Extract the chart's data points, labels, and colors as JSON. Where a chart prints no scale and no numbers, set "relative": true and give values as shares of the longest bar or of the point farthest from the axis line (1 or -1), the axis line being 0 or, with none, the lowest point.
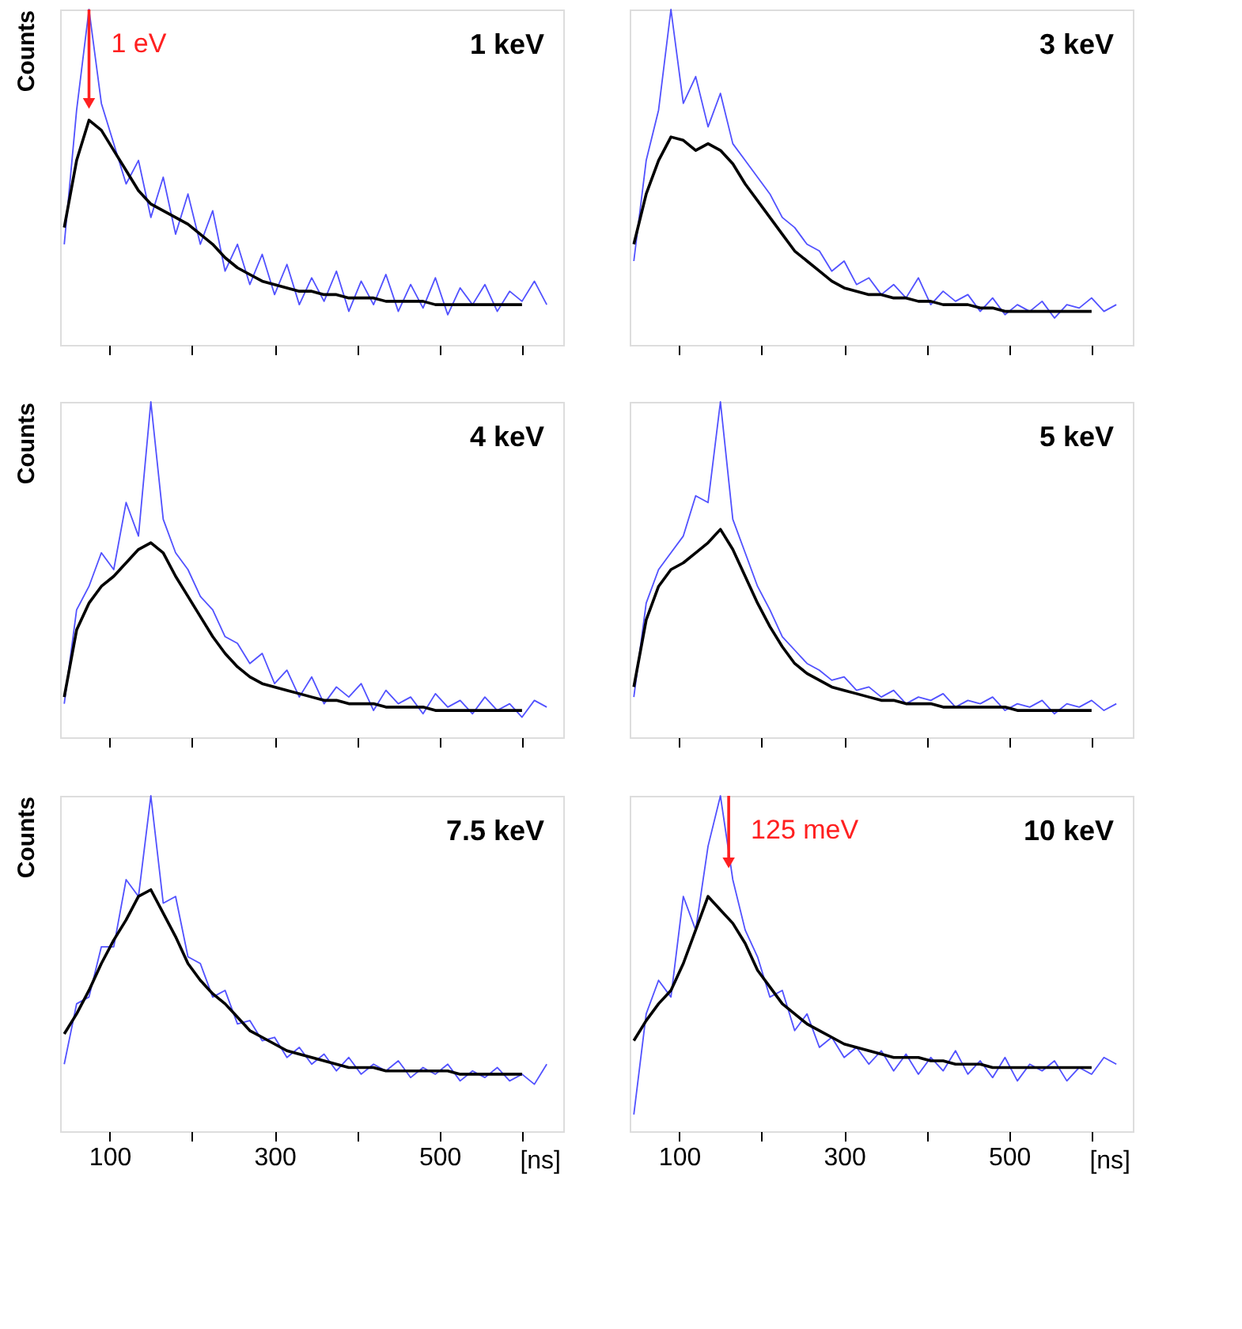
{
  "chart_data": [
    {
      "type": "line",
      "title": "1 keV",
      "ylabel": "Counts",
      "relative": true,
      "grid": false,
      "tick_labels": false,
      "xlim": [
        40,
        650
      ],
      "xticks": [
        100,
        {
          "value": 200,
          "label": null
        },
        300,
        {
          "value": 400,
          "label": null
        },
        500,
        {
          "value": 600,
          "label": null
        }
      ],
      "x": [
        45,
        60,
        75,
        90,
        105,
        120,
        135,
        150,
        165,
        180,
        195,
        210,
        225,
        240,
        255,
        270,
        285,
        300,
        315,
        330,
        345,
        360,
        375,
        390,
        405,
        420,
        435,
        450,
        465,
        480,
        495,
        510,
        525,
        540,
        555,
        570,
        585,
        600,
        615,
        630
      ],
      "annotations": [
        {
          "text": "1 eV",
          "x": 75,
          "y": 0.72
        }
      ],
      "series": [
        {
          "color": "#3333ff",
          "values": [
            0.3,
            0.7,
            1.0,
            0.72,
            0.6,
            0.48,
            0.55,
            0.38,
            0.5,
            0.33,
            0.45,
            0.3,
            0.4,
            0.22,
            0.3,
            0.18,
            0.27,
            0.15,
            0.24,
            0.12,
            0.2,
            0.13,
            0.22,
            0.1,
            0.19,
            0.12,
            0.21,
            0.1,
            0.18,
            0.11,
            0.2,
            0.09,
            0.17,
            0.12,
            0.18,
            0.1,
            0.16,
            0.13,
            0.19,
            0.12
          ]
        },
        {
          "color": "#000000",
          "values": [
            0.35,
            0.55,
            0.67,
            0.64,
            0.58,
            0.52,
            0.46,
            0.42,
            0.4,
            0.38,
            0.36,
            0.33,
            0.3,
            0.26,
            0.23,
            0.21,
            0.19,
            0.18,
            0.17,
            0.16,
            0.16,
            0.15,
            0.15,
            0.14,
            0.14,
            0.14,
            0.13,
            0.13,
            0.13,
            0.13,
            0.12,
            0.12,
            0.12,
            0.12,
            0.12,
            0.12,
            0.12,
            0.12,
            null,
            null
          ]
        }
      ]
    },
    {
      "type": "line",
      "title": "3 keV",
      "relative": true,
      "grid": false,
      "tick_labels": false,
      "xlim": [
        40,
        650
      ],
      "xticks": [
        100,
        {
          "value": 200,
          "label": null
        },
        300,
        {
          "value": 400,
          "label": null
        },
        500,
        {
          "value": 600,
          "label": null
        }
      ],
      "x": [
        45,
        60,
        75,
        90,
        105,
        120,
        135,
        150,
        165,
        180,
        195,
        210,
        225,
        240,
        255,
        270,
        285,
        300,
        315,
        330,
        345,
        360,
        375,
        390,
        405,
        420,
        435,
        450,
        465,
        480,
        495,
        510,
        525,
        540,
        555,
        570,
        585,
        600,
        615,
        630
      ],
      "series": [
        {
          "color": "#3333ff",
          "values": [
            0.25,
            0.55,
            0.7,
            1.0,
            0.72,
            0.8,
            0.65,
            0.75,
            0.6,
            0.55,
            0.5,
            0.45,
            0.38,
            0.35,
            0.3,
            0.28,
            0.22,
            0.25,
            0.18,
            0.2,
            0.15,
            0.18,
            0.14,
            0.2,
            0.12,
            0.16,
            0.13,
            0.15,
            0.1,
            0.14,
            0.09,
            0.12,
            0.1,
            0.13,
            0.08,
            0.12,
            0.11,
            0.14,
            0.1,
            0.12
          ]
        },
        {
          "color": "#000000",
          "values": [
            0.3,
            0.45,
            0.55,
            0.62,
            0.61,
            0.58,
            0.6,
            0.58,
            0.54,
            0.48,
            0.43,
            0.38,
            0.33,
            0.28,
            0.25,
            0.22,
            0.19,
            0.17,
            0.16,
            0.15,
            0.15,
            0.14,
            0.14,
            0.13,
            0.13,
            0.12,
            0.12,
            0.12,
            0.11,
            0.11,
            0.1,
            0.1,
            0.1,
            0.1,
            0.1,
            0.1,
            0.1,
            0.1,
            null,
            null
          ]
        }
      ]
    },
    {
      "type": "line",
      "title": "4 keV",
      "ylabel": "Counts",
      "relative": true,
      "grid": false,
      "tick_labels": false,
      "xlim": [
        40,
        650
      ],
      "xticks": [
        100,
        {
          "value": 200,
          "label": null
        },
        300,
        {
          "value": 400,
          "label": null
        },
        500,
        {
          "value": 600,
          "label": null
        }
      ],
      "x": [
        45,
        60,
        75,
        90,
        105,
        120,
        135,
        150,
        165,
        180,
        195,
        210,
        225,
        240,
        255,
        270,
        285,
        300,
        315,
        330,
        345,
        360,
        375,
        390,
        405,
        420,
        435,
        450,
        465,
        480,
        495,
        510,
        525,
        540,
        555,
        570,
        585,
        600,
        615,
        630
      ],
      "series": [
        {
          "color": "#3333ff",
          "values": [
            0.1,
            0.38,
            0.45,
            0.55,
            0.5,
            0.7,
            0.6,
            1.0,
            0.65,
            0.55,
            0.5,
            0.42,
            0.38,
            0.3,
            0.28,
            0.22,
            0.25,
            0.16,
            0.2,
            0.12,
            0.18,
            0.1,
            0.15,
            0.12,
            0.16,
            0.08,
            0.14,
            0.1,
            0.12,
            0.07,
            0.13,
            0.09,
            0.11,
            0.07,
            0.12,
            0.08,
            0.1,
            0.06,
            0.11,
            0.09
          ]
        },
        {
          "color": "#000000",
          "values": [
            0.12,
            0.32,
            0.4,
            0.45,
            0.48,
            0.52,
            0.56,
            0.58,
            0.55,
            0.48,
            0.42,
            0.36,
            0.3,
            0.25,
            0.21,
            0.18,
            0.16,
            0.15,
            0.14,
            0.13,
            0.12,
            0.11,
            0.11,
            0.1,
            0.1,
            0.1,
            0.09,
            0.09,
            0.09,
            0.09,
            0.08,
            0.08,
            0.08,
            0.08,
            0.08,
            0.08,
            0.08,
            0.08,
            null,
            null
          ]
        }
      ]
    },
    {
      "type": "line",
      "title": "5 keV",
      "relative": true,
      "grid": false,
      "tick_labels": false,
      "xlim": [
        40,
        650
      ],
      "xticks": [
        100,
        {
          "value": 200,
          "label": null
        },
        300,
        {
          "value": 400,
          "label": null
        },
        500,
        {
          "value": 600,
          "label": null
        }
      ],
      "x": [
        45,
        60,
        75,
        90,
        105,
        120,
        135,
        150,
        165,
        180,
        195,
        210,
        225,
        240,
        255,
        270,
        285,
        300,
        315,
        330,
        345,
        360,
        375,
        390,
        405,
        420,
        435,
        450,
        465,
        480,
        495,
        510,
        525,
        540,
        555,
        570,
        585,
        600,
        615,
        630
      ],
      "series": [
        {
          "color": "#3333ff",
          "values": [
            0.12,
            0.4,
            0.5,
            0.55,
            0.6,
            0.72,
            0.7,
            1.0,
            0.65,
            0.55,
            0.45,
            0.38,
            0.3,
            0.26,
            0.22,
            0.2,
            0.17,
            0.18,
            0.14,
            0.15,
            0.12,
            0.14,
            0.1,
            0.12,
            0.11,
            0.13,
            0.09,
            0.11,
            0.1,
            0.12,
            0.08,
            0.1,
            0.09,
            0.11,
            0.07,
            0.1,
            0.09,
            0.11,
            0.08,
            0.1
          ]
        },
        {
          "color": "#000000",
          "values": [
            0.15,
            0.35,
            0.45,
            0.5,
            0.52,
            0.55,
            0.58,
            0.62,
            0.56,
            0.48,
            0.4,
            0.33,
            0.27,
            0.22,
            0.19,
            0.17,
            0.15,
            0.14,
            0.13,
            0.12,
            0.11,
            0.11,
            0.1,
            0.1,
            0.1,
            0.09,
            0.09,
            0.09,
            0.09,
            0.09,
            0.09,
            0.08,
            0.08,
            0.08,
            0.08,
            0.08,
            0.08,
            0.08,
            null,
            null
          ]
        }
      ]
    },
    {
      "type": "line",
      "title": "7.5 keV",
      "ylabel": "Counts",
      "xlabel": "[ns]",
      "relative": true,
      "grid": false,
      "tick_labels": "x",
      "xlim": [
        40,
        650
      ],
      "xticks": [
        100,
        {
          "value": 200,
          "label": null
        },
        300,
        {
          "value": 400,
          "label": null
        },
        500,
        {
          "value": 600,
          "label": null
        }
      ],
      "x": [
        45,
        60,
        75,
        90,
        105,
        120,
        135,
        150,
        165,
        180,
        195,
        210,
        225,
        240,
        255,
        270,
        285,
        300,
        315,
        330,
        345,
        360,
        375,
        390,
        405,
        420,
        435,
        450,
        465,
        480,
        495,
        510,
        525,
        540,
        555,
        570,
        585,
        600,
        615,
        630
      ],
      "series": [
        {
          "color": "#3333ff",
          "values": [
            0.2,
            0.38,
            0.4,
            0.55,
            0.55,
            0.75,
            0.7,
            1.0,
            0.68,
            0.7,
            0.52,
            0.5,
            0.4,
            0.42,
            0.32,
            0.33,
            0.27,
            0.28,
            0.22,
            0.25,
            0.2,
            0.23,
            0.18,
            0.22,
            0.17,
            0.2,
            0.18,
            0.21,
            0.16,
            0.19,
            0.17,
            0.2,
            0.15,
            0.18,
            0.16,
            0.19,
            0.15,
            0.17,
            0.14,
            0.2
          ]
        },
        {
          "color": "#000000",
          "values": [
            0.29,
            0.35,
            0.42,
            0.5,
            0.57,
            0.63,
            0.7,
            0.72,
            0.65,
            0.58,
            0.5,
            0.45,
            0.41,
            0.38,
            0.34,
            0.3,
            0.28,
            0.26,
            0.24,
            0.23,
            0.22,
            0.21,
            0.2,
            0.19,
            0.19,
            0.19,
            0.18,
            0.18,
            0.18,
            0.18,
            0.18,
            0.18,
            0.17,
            0.17,
            0.17,
            0.17,
            0.17,
            0.17,
            null,
            null
          ]
        }
      ]
    },
    {
      "type": "line",
      "title": "10 keV",
      "xlabel": "[ns]",
      "relative": true,
      "grid": false,
      "tick_labels": "x",
      "xlim": [
        40,
        650
      ],
      "xticks": [
        100,
        {
          "value": 200,
          "label": null
        },
        300,
        {
          "value": 400,
          "label": null
        },
        500,
        {
          "value": 600,
          "label": null
        }
      ],
      "x": [
        45,
        60,
        75,
        90,
        105,
        120,
        135,
        150,
        165,
        180,
        195,
        210,
        225,
        240,
        255,
        270,
        285,
        300,
        315,
        330,
        345,
        360,
        375,
        390,
        405,
        420,
        435,
        450,
        465,
        480,
        495,
        510,
        525,
        540,
        555,
        570,
        585,
        600,
        615,
        630
      ],
      "annotations": [
        {
          "text": "125 meV",
          "x": 160,
          "y": 0.8
        }
      ],
      "series": [
        {
          "color": "#3333ff",
          "values": [
            0.05,
            0.35,
            0.45,
            0.4,
            0.7,
            0.6,
            0.85,
            1.0,
            0.75,
            0.6,
            0.52,
            0.4,
            0.42,
            0.3,
            0.35,
            0.25,
            0.28,
            0.22,
            0.25,
            0.2,
            0.24,
            0.18,
            0.23,
            0.17,
            0.22,
            0.18,
            0.24,
            0.17,
            0.21,
            0.16,
            0.22,
            0.15,
            0.2,
            0.18,
            0.21,
            0.15,
            0.19,
            0.17,
            0.22,
            0.2
          ]
        },
        {
          "color": "#000000",
          "values": [
            0.27,
            0.33,
            0.38,
            0.42,
            0.5,
            0.6,
            0.7,
            0.66,
            0.62,
            0.56,
            0.48,
            0.43,
            0.38,
            0.35,
            0.32,
            0.3,
            0.28,
            0.26,
            0.25,
            0.24,
            0.23,
            0.22,
            0.22,
            0.22,
            0.21,
            0.21,
            0.2,
            0.2,
            0.2,
            0.19,
            0.19,
            0.19,
            0.19,
            0.19,
            0.19,
            0.19,
            0.19,
            0.19,
            null,
            null
          ]
        }
      ]
    }
  ]
}
